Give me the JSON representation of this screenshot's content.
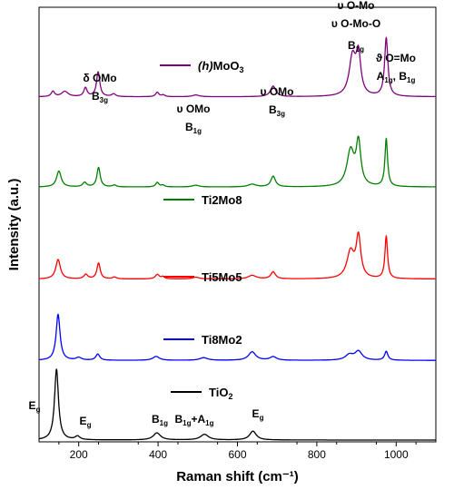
{
  "chart_data": {
    "type": "line",
    "xlabel": "Raman shift (cm⁻¹)",
    "ylabel": "Intensity (a.u.)",
    "xlim": [
      100,
      1100
    ],
    "xticks": [
      200,
      400,
      600,
      800,
      1000
    ],
    "grid": false,
    "legend": "inline labels next to each spectrum",
    "series": [
      {
        "label": "TiO₂",
        "label_main": "TiO",
        "label_sub": "2",
        "italic_prefix": "",
        "color": "#000000",
        "baseline": 0.0,
        "peaks": [
          [
            144,
            40,
            6
          ],
          [
            197,
            2,
            7
          ],
          [
            397,
            4,
            11
          ],
          [
            517,
            3.2,
            12
          ],
          [
            639,
            5,
            10
          ]
        ]
      },
      {
        "label": "Ti8Mo2",
        "label_main": "Ti8Mo2",
        "label_sub": "",
        "italic_prefix": "",
        "color": "#0000ff",
        "baseline": 45,
        "peaks": [
          [
            148,
            26,
            6
          ],
          [
            200,
            1.5,
            8
          ],
          [
            248,
            3.5,
            6
          ],
          [
            395,
            2.2,
            10
          ],
          [
            515,
            1.5,
            12
          ],
          [
            637,
            4.8,
            11
          ],
          [
            690,
            2,
            10
          ],
          [
            882,
            3,
            12
          ],
          [
            905,
            5,
            11
          ],
          [
            975,
            5,
            5
          ]
        ]
      },
      {
        "label": "Ti5Mo5",
        "label_main": "Ti5Mo5",
        "label_sub": "",
        "italic_prefix": "",
        "color": "#ff0000",
        "baseline": 91,
        "peaks": [
          [
            148,
            11,
            7
          ],
          [
            218,
            2.5,
            6
          ],
          [
            250,
            9,
            5
          ],
          [
            290,
            1,
            6
          ],
          [
            398,
            2.5,
            6
          ],
          [
            412,
            1.2,
            5
          ],
          [
            495,
            1,
            10
          ],
          [
            637,
            2,
            12
          ],
          [
            690,
            4,
            7
          ],
          [
            885,
            15,
            11
          ],
          [
            905,
            23,
            7
          ],
          [
            975,
            24,
            4
          ]
        ]
      },
      {
        "label": "Ti2Mo8",
        "label_main": "Ti2Mo8",
        "label_sub": "",
        "italic_prefix": "",
        "color": "#008000",
        "baseline": 143,
        "peaks": [
          [
            150,
            9,
            7
          ],
          [
            215,
            2.5,
            6
          ],
          [
            250,
            11,
            5
          ],
          [
            290,
            1,
            6
          ],
          [
            398,
            2.5,
            5
          ],
          [
            412,
            1,
            5
          ],
          [
            495,
            1,
            10
          ],
          [
            637,
            1.5,
            12
          ],
          [
            690,
            6,
            7
          ],
          [
            885,
            20,
            11
          ],
          [
            905,
            24,
            7
          ],
          [
            975,
            27,
            4
          ]
        ]
      },
      {
        "label": "(h)MoO₃",
        "label_main": "MoO",
        "label_sub": "3",
        "italic_prefix": "(h)",
        "color": "#800080",
        "baseline": 194,
        "peaks": [
          [
            135,
            3,
            5
          ],
          [
            165,
            3,
            10
          ],
          [
            217,
            5,
            5
          ],
          [
            249,
            14,
            5
          ],
          [
            288,
            1.5,
            6
          ],
          [
            398,
            2.5,
            5
          ],
          [
            413,
            1,
            5
          ],
          [
            495,
            1,
            10
          ],
          [
            690,
            6,
            8
          ],
          [
            890,
            22,
            10
          ],
          [
            905,
            22,
            7
          ],
          [
            975,
            33,
            5
          ]
        ]
      }
    ],
    "annotations": [
      {
        "id": "tio2-eg-1",
        "main": "E",
        "sub": "g",
        "x": 144
      },
      {
        "id": "tio2-eg-2",
        "main": "E",
        "sub": "g",
        "x": 197
      },
      {
        "id": "tio2-b1g",
        "main": "B",
        "sub": "1g",
        "x": 397
      },
      {
        "id": "tio2-b1g-a1g",
        "main": "B",
        "sub": "1g",
        "main2": "+A",
        "sub2": "1g",
        "x": 517
      },
      {
        "id": "tio2-eg-3",
        "main": "E",
        "sub": "g",
        "x": 639
      },
      {
        "id": "mo-delta-omo",
        "line1": "δ OMo",
        "main": "B",
        "sub": "3g",
        "x": 249
      },
      {
        "id": "mo-nu-omo-1",
        "line1": "υ OMo",
        "main": "B",
        "sub": "1g",
        "x": 398
      },
      {
        "id": "mo-nu-omo-2",
        "line1": "υ OMo",
        "main": "B",
        "sub": "3g",
        "x": 690
      },
      {
        "id": "mo-nu-o-mo",
        "line1": "υ O-Mo",
        "line2": "υ O-Mo-O",
        "main": "B",
        "sub": "1g",
        "x": 900
      },
      {
        "id": "mo-theta-o-mo",
        "line1": "ϑ O=Mo",
        "main": "A",
        "sub": "1g",
        "main2": ", B",
        "sub2": "1g",
        "x": 975
      }
    ]
  }
}
